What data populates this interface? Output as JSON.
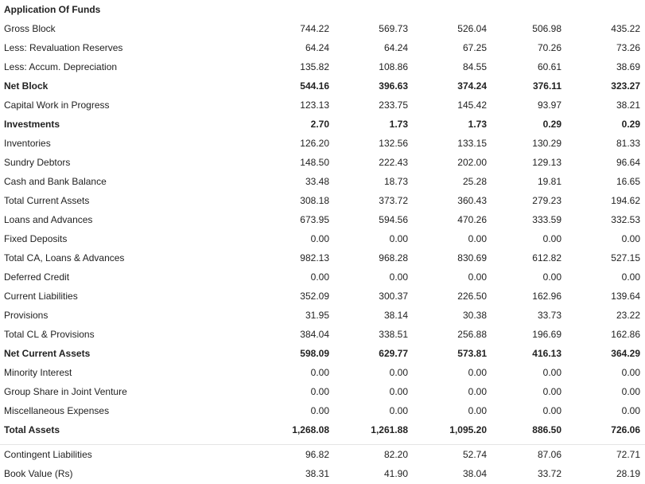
{
  "section_title": "Application Of Funds",
  "rows": [
    {
      "label": "Gross Block",
      "bold": false,
      "values": [
        "744.22",
        "569.73",
        "526.04",
        "506.98",
        "435.22"
      ]
    },
    {
      "label": "Less: Revaluation Reserves",
      "bold": false,
      "values": [
        "64.24",
        "64.24",
        "67.25",
        "70.26",
        "73.26"
      ]
    },
    {
      "label": "Less: Accum. Depreciation",
      "bold": false,
      "values": [
        "135.82",
        "108.86",
        "84.55",
        "60.61",
        "38.69"
      ]
    },
    {
      "label": "Net Block",
      "bold": true,
      "values": [
        "544.16",
        "396.63",
        "374.24",
        "376.11",
        "323.27"
      ]
    },
    {
      "label": "Capital Work in Progress",
      "bold": false,
      "values": [
        "123.13",
        "233.75",
        "145.42",
        "93.97",
        "38.21"
      ]
    },
    {
      "label": "Investments",
      "bold": true,
      "values": [
        "2.70",
        "1.73",
        "1.73",
        "0.29",
        "0.29"
      ]
    },
    {
      "label": "Inventories",
      "bold": false,
      "values": [
        "126.20",
        "132.56",
        "133.15",
        "130.29",
        "81.33"
      ]
    },
    {
      "label": "Sundry Debtors",
      "bold": false,
      "values": [
        "148.50",
        "222.43",
        "202.00",
        "129.13",
        "96.64"
      ]
    },
    {
      "label": "Cash and Bank Balance",
      "bold": false,
      "values": [
        "33.48",
        "18.73",
        "25.28",
        "19.81",
        "16.65"
      ]
    },
    {
      "label": "Total Current Assets",
      "bold": false,
      "values": [
        "308.18",
        "373.72",
        "360.43",
        "279.23",
        "194.62"
      ]
    },
    {
      "label": "Loans and Advances",
      "bold": false,
      "values": [
        "673.95",
        "594.56",
        "470.26",
        "333.59",
        "332.53"
      ]
    },
    {
      "label": "Fixed Deposits",
      "bold": false,
      "values": [
        "0.00",
        "0.00",
        "0.00",
        "0.00",
        "0.00"
      ]
    },
    {
      "label": "Total CA, Loans & Advances",
      "bold": false,
      "values": [
        "982.13",
        "968.28",
        "830.69",
        "612.82",
        "527.15"
      ]
    },
    {
      "label": "Deferred Credit",
      "bold": false,
      "values": [
        "0.00",
        "0.00",
        "0.00",
        "0.00",
        "0.00"
      ]
    },
    {
      "label": "Current Liabilities",
      "bold": false,
      "values": [
        "352.09",
        "300.37",
        "226.50",
        "162.96",
        "139.64"
      ]
    },
    {
      "label": "Provisions",
      "bold": false,
      "values": [
        "31.95",
        "38.14",
        "30.38",
        "33.73",
        "23.22"
      ]
    },
    {
      "label": "Total CL & Provisions",
      "bold": false,
      "values": [
        "384.04",
        "338.51",
        "256.88",
        "196.69",
        "162.86"
      ]
    },
    {
      "label": "Net Current Assets",
      "bold": true,
      "values": [
        "598.09",
        "629.77",
        "573.81",
        "416.13",
        "364.29"
      ]
    },
    {
      "label": "Minority Interest",
      "bold": false,
      "values": [
        "0.00",
        "0.00",
        "0.00",
        "0.00",
        "0.00"
      ]
    },
    {
      "label": "Group Share in Joint Venture",
      "bold": false,
      "values": [
        "0.00",
        "0.00",
        "0.00",
        "0.00",
        "0.00"
      ]
    },
    {
      "label": "Miscellaneous Expenses",
      "bold": false,
      "values": [
        "0.00",
        "0.00",
        "0.00",
        "0.00",
        "0.00"
      ]
    },
    {
      "label": "Total Assets",
      "bold": true,
      "values": [
        "1,268.08",
        "1,261.88",
        "1,095.20",
        "886.50",
        "726.06"
      ]
    }
  ],
  "footer_rows": [
    {
      "label": "Contingent Liabilities",
      "bold": false,
      "values": [
        "96.82",
        "82.20",
        "52.74",
        "87.06",
        "72.71"
      ]
    },
    {
      "label": "Book Value (Rs)",
      "bold": false,
      "values": [
        "38.31",
        "41.90",
        "38.04",
        "33.72",
        "28.19"
      ]
    }
  ]
}
